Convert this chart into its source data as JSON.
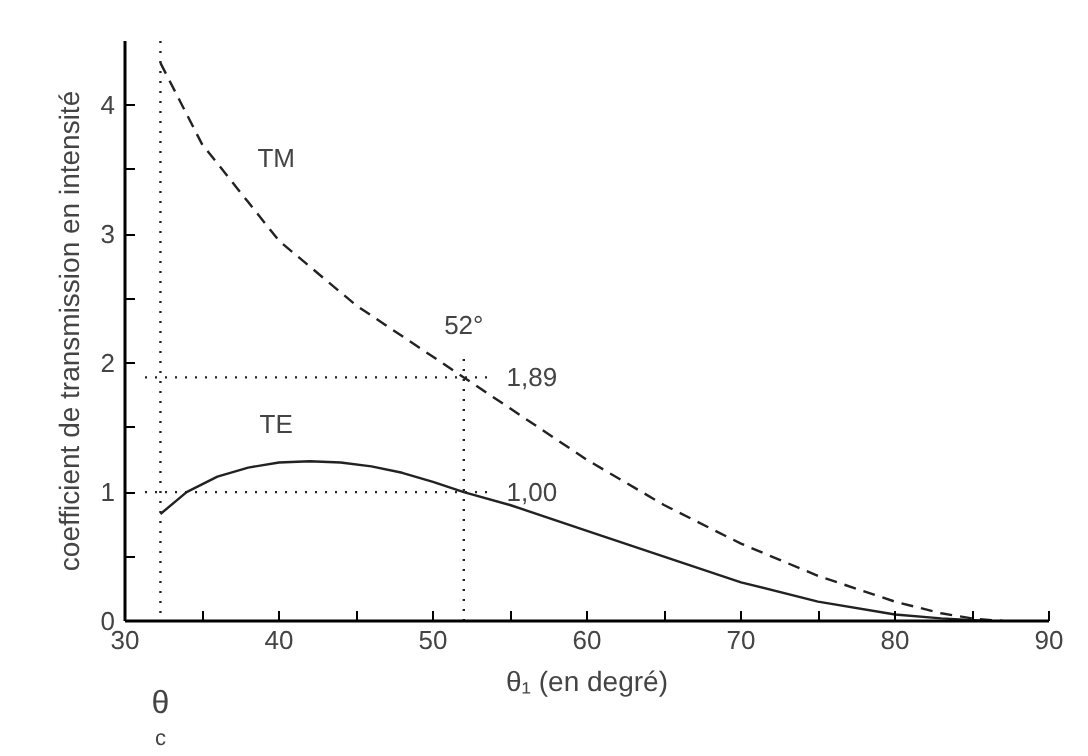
{
  "chart_data": {
    "type": "line",
    "xlabel": "θ₁ (en degré)",
    "ylabel": "coefficient de transmission en intensité",
    "xlim": [
      30,
      90
    ],
    "ylim": [
      0,
      4.5
    ],
    "xticks": [
      30,
      {
        "value": 35,
        "label": null
      },
      40,
      {
        "value": 45,
        "label": null
      },
      50,
      {
        "value": 55,
        "label": null
      },
      60,
      {
        "value": 65,
        "label": null
      },
      70,
      {
        "value": 75,
        "label": null
      },
      80,
      {
        "value": 85,
        "label": null
      },
      90
    ],
    "yticks": [
      0,
      {
        "value": 0.5,
        "label": null
      },
      1,
      {
        "value": 1.5,
        "label": null
      },
      2,
      {
        "value": 2.5,
        "label": null
      },
      3,
      {
        "value": 3.5,
        "label": null
      },
      4
    ],
    "grid": false,
    "legend": false,
    "series": [
      {
        "name": "TM",
        "color": "#222222",
        "line_style": "dashed",
        "x": [
          32.3,
          35,
          38,
          40,
          45,
          50,
          52,
          55,
          60,
          65,
          70,
          75,
          80,
          83,
          85,
          87
        ],
        "values": [
          4.33,
          3.7,
          3.25,
          2.95,
          2.45,
          2.05,
          1.89,
          1.65,
          1.25,
          0.9,
          0.6,
          0.35,
          0.15,
          0.06,
          0.02,
          0
        ]
      },
      {
        "name": "TE",
        "color": "#222222",
        "line_style": "solid",
        "x": [
          32.3,
          34,
          36,
          38,
          40,
          42,
          44,
          46,
          48,
          50,
          52,
          55,
          60,
          65,
          70,
          75,
          80,
          83,
          86
        ],
        "values": [
          0.83,
          1.0,
          1.12,
          1.19,
          1.23,
          1.24,
          1.23,
          1.2,
          1.15,
          1.08,
          1.0,
          0.9,
          0.7,
          0.5,
          0.3,
          0.15,
          0.05,
          0.02,
          0
        ]
      }
    ],
    "ref_lines": [
      {
        "axis": "x",
        "value": 32.3,
        "label": "θ$_{c}$",
        "line_style": "dotted"
      },
      {
        "axis": "x",
        "value": 52,
        "label": "52°",
        "line_style": "dotted"
      },
      {
        "axis": "y",
        "value": 1.89,
        "label": "1,89",
        "line_style": "dotted"
      },
      {
        "axis": "y",
        "value": 1.0,
        "label": "1,00",
        "line_style": "dotted"
      }
    ]
  }
}
